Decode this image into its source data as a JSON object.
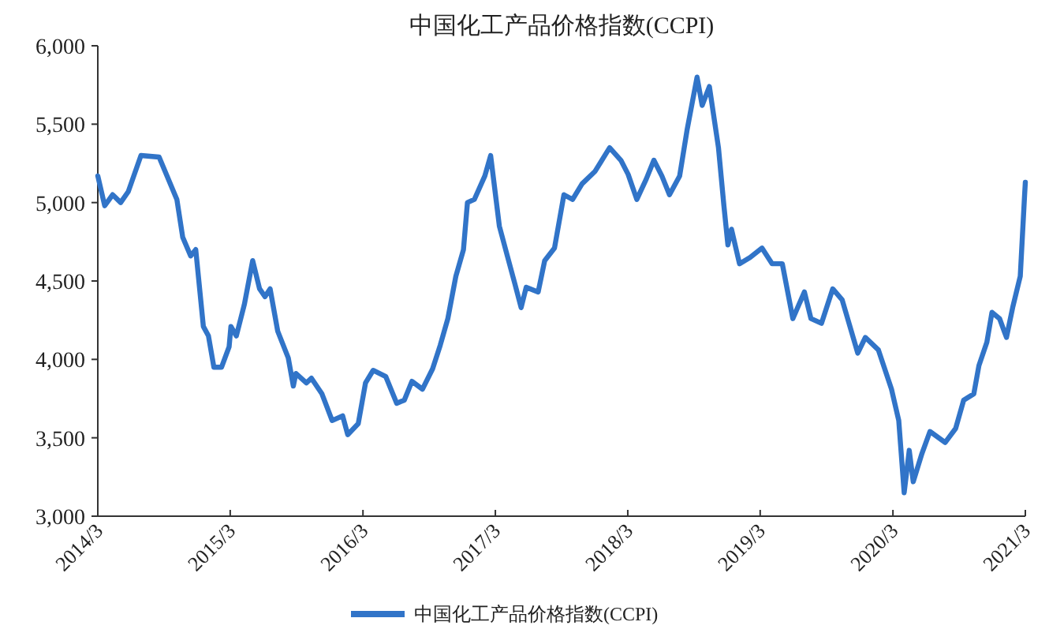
{
  "chart_data": {
    "type": "line",
    "title": "中国化工产品价格指数(CCPI)",
    "x": [
      "2014-03-01",
      "2014-03-20",
      "2014-04-11",
      "2014-05-03",
      "2014-05-24",
      "2014-06-28",
      "2014-08-17",
      "2014-10-05",
      "2014-10-21",
      "2014-11-12",
      "2014-11-26",
      "2014-12-17",
      "2014-12-31",
      "2015-01-15",
      "2015-02-05",
      "2015-02-26",
      "2015-03-03",
      "2015-03-18",
      "2015-04-09",
      "2015-05-02",
      "2015-05-21",
      "2015-06-05",
      "2015-06-19",
      "2015-07-10",
      "2015-08-08",
      "2015-08-22",
      "2015-08-29",
      "2015-09-27",
      "2015-10-11",
      "2015-11-09",
      "2015-12-07",
      "2016-01-05",
      "2016-01-19",
      "2016-02-17",
      "2016-03-08",
      "2016-03-29",
      "2016-05-03",
      "2016-06-02",
      "2016-06-23",
      "2016-07-14",
      "2016-08-12",
      "2016-09-09",
      "2016-09-30",
      "2016-10-21",
      "2016-11-12",
      "2016-12-03",
      "2016-12-14",
      "2017-01-02",
      "2017-01-31",
      "2017-02-16",
      "2017-03-12",
      "2017-04-03",
      "2017-04-24",
      "2017-05-11",
      "2017-05-25",
      "2017-06-27",
      "2017-07-15",
      "2017-08-11",
      "2017-09-06",
      "2017-09-30",
      "2017-10-26",
      "2017-12-01",
      "2018-01-10",
      "2018-02-10",
      "2018-03-02",
      "2018-03-26",
      "2018-04-21",
      "2018-05-12",
      "2018-06-03",
      "2018-06-24",
      "2018-07-22",
      "2018-08-12",
      "2018-09-08",
      "2018-09-22",
      "2018-10-12",
      "2018-11-06",
      "2018-11-21",
      "2018-12-02",
      "2018-12-12",
      "2019-01-03",
      "2019-02-01",
      "2019-03-06",
      "2019-04-03",
      "2019-05-01",
      "2019-05-30",
      "2019-07-01",
      "2019-07-19",
      "2019-08-17",
      "2019-09-17",
      "2019-10-13",
      "2019-11-25",
      "2019-12-16",
      "2020-01-21",
      "2020-02-26",
      "2020-03-17",
      "2020-04-01",
      "2020-04-15",
      "2020-04-26",
      "2020-05-20",
      "2020-06-11",
      "2020-07-23",
      "2020-08-21",
      "2020-09-12",
      "2020-10-10",
      "2020-10-24",
      "2020-11-15",
      "2020-11-29",
      "2020-12-20",
      "2021-01-08",
      "2021-01-25",
      "2021-02-15",
      "2021-02-27",
      "2021-03-01"
    ],
    "series": [
      {
        "name": "中国化工产品价格指数(CCPI)",
        "color": "#3174c8",
        "values": [
          5170,
          4980,
          5050,
          5000,
          5070,
          5300,
          5290,
          5020,
          4780,
          4660,
          4700,
          4210,
          4150,
          3950,
          3950,
          4080,
          4210,
          4150,
          4350,
          4630,
          4450,
          4400,
          4450,
          4180,
          4010,
          3830,
          3910,
          3850,
          3880,
          3780,
          3610,
          3640,
          3520,
          3590,
          3850,
          3930,
          3890,
          3720,
          3740,
          3860,
          3810,
          3940,
          4090,
          4260,
          4530,
          4700,
          5000,
          5020,
          5170,
          5300,
          4850,
          4660,
          4480,
          4330,
          4460,
          4430,
          4630,
          4710,
          5050,
          5020,
          5120,
          5200,
          5350,
          5270,
          5180,
          5020,
          5150,
          5270,
          5170,
          5050,
          5170,
          5470,
          5800,
          5620,
          5740,
          5350,
          4980,
          4730,
          4830,
          4610,
          4650,
          4710,
          4610,
          4610,
          4260,
          4430,
          4260,
          4230,
          4450,
          4380,
          4040,
          4140,
          4060,
          3810,
          3610,
          3150,
          3420,
          3220,
          3400,
          3540,
          3470,
          3560,
          3740,
          3780,
          3960,
          4110,
          4300,
          4260,
          4140,
          4330,
          4530,
          5050,
          5130
        ]
      }
    ],
    "xlim": [
      "2014-03",
      "2021-03"
    ],
    "xticks": [
      {
        "value": "2014-03",
        "label": "2014/3"
      },
      {
        "value": "2015-03",
        "label": "2015/3"
      },
      {
        "value": "2016-03",
        "label": "2016/3"
      },
      {
        "value": "2017-03",
        "label": "2017/3"
      },
      {
        "value": "2018-03",
        "label": "2018/3"
      },
      {
        "value": "2019-03",
        "label": "2019/3"
      },
      {
        "value": "2020-03",
        "label": "2020/3"
      },
      {
        "value": "2021-03",
        "label": "2021/3"
      }
    ],
    "ylim": [
      3000,
      6000
    ],
    "yticks": [
      {
        "value": 3000,
        "label": "3,000"
      },
      {
        "value": 3500,
        "label": "3,500"
      },
      {
        "value": 4000,
        "label": "4,000"
      },
      {
        "value": 4500,
        "label": "4,500"
      },
      {
        "value": 5000,
        "label": "5,000"
      },
      {
        "value": 5500,
        "label": "5,500"
      },
      {
        "value": 6000,
        "label": "6,000"
      }
    ],
    "grid": false,
    "legend": "bottom"
  }
}
